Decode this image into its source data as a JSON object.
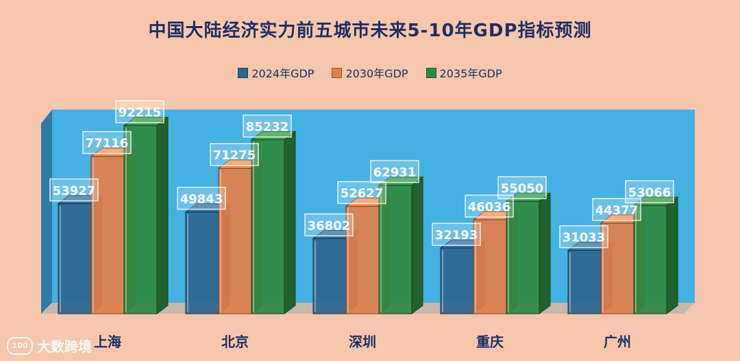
{
  "chart_data": {
    "type": "bar",
    "title": "中国大陆经济实力前五城市未来5-10年GDP指标预测",
    "categories": [
      "上海",
      "北京",
      "深圳",
      "重庆",
      "广州"
    ],
    "series": [
      {
        "name": "2024年GDP",
        "color": "#2c6690",
        "values": [
          53927,
          49843,
          36802,
          32193,
          31033
        ]
      },
      {
        "name": "2030年GDP",
        "color": "#e27f4b",
        "values": [
          77116,
          71275,
          52627,
          46036,
          44377
        ]
      },
      {
        "name": "2035年GDP",
        "color": "#2f8a3f",
        "values": [
          92215,
          85232,
          62931,
          55050,
          53066
        ]
      }
    ],
    "ylim": [
      0,
      100000
    ],
    "xlabel": "",
    "ylabel": "",
    "legend_position": "top-center",
    "grid": false,
    "background_colors": {
      "page": "#f6c7ad",
      "plot_wall": "#45b0e2"
    }
  },
  "watermark": {
    "text": "大数跨境",
    "logo_text": "100"
  }
}
